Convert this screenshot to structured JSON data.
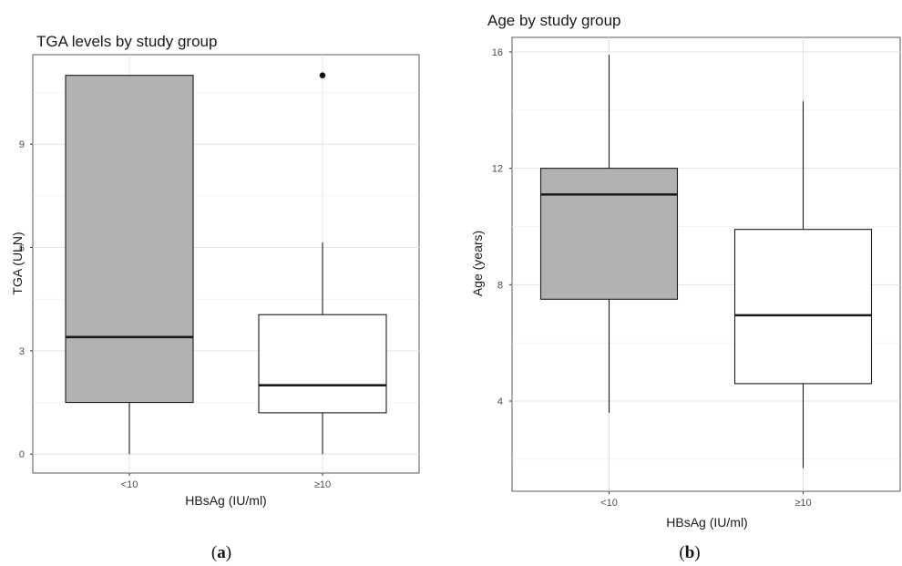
{
  "chart_data": [
    {
      "type": "boxplot",
      "panel": "a",
      "title": "TGA levels by study group",
      "xlabel": "HBsAg (IU/ml)",
      "ylabel": "TGA (ULN)",
      "ylim": [
        -0.55,
        11.6
      ],
      "yticks": [
        0,
        3,
        6,
        9
      ],
      "yticks_minor": [
        1.5,
        4.5,
        7.5,
        10.5
      ],
      "grid": true,
      "categories": [
        "<10",
        "≥10"
      ],
      "boxes": [
        {
          "category": "<10",
          "whisker_low": 0,
          "q1": 1.5,
          "median": 3.4,
          "q3": 11,
          "whisker_high": 11,
          "fill": "#b2b2b2",
          "outliers": []
        },
        {
          "category": "≥10",
          "whisker_low": 0,
          "q1": 1.2,
          "median": 2.0,
          "q3": 4.05,
          "whisker_high": 6.15,
          "fill": "#ffffff",
          "outliers": [
            11
          ]
        }
      ],
      "caption": "(a)"
    },
    {
      "type": "boxplot",
      "panel": "b",
      "title": "Age by study group",
      "xlabel": "HBsAg (IU/ml)",
      "ylabel": "Age (years)",
      "ylim": [
        0.9,
        16.5
      ],
      "yticks": [
        4,
        8,
        12,
        16
      ],
      "yticks_minor": [
        2,
        6,
        10,
        14
      ],
      "grid": true,
      "categories": [
        "<10",
        "≥10"
      ],
      "boxes": [
        {
          "category": "<10",
          "whisker_low": 3.6,
          "q1": 7.5,
          "median": 11.1,
          "q3": 12.0,
          "whisker_high": 15.9,
          "fill": "#b2b2b2",
          "outliers": []
        },
        {
          "category": "≥10",
          "whisker_low": 1.7,
          "q1": 4.6,
          "median": 6.95,
          "q3": 9.9,
          "whisker_high": 14.3,
          "fill": "#ffffff",
          "outliers": []
        }
      ],
      "caption": "(b)"
    }
  ],
  "captions": {
    "a": "(a)",
    "b": "(b)"
  }
}
